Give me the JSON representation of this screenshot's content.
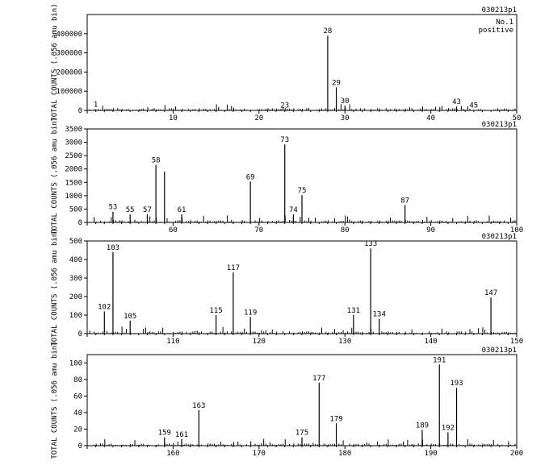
{
  "chart_data": [
    {
      "type": "bar",
      "sample_id": "030213p1",
      "notes": [
        "No.1",
        "positive"
      ],
      "ylabel": "TOTAL COUNTS (.056 amu bin)",
      "xlim": [
        0,
        50
      ],
      "ylim": [
        0,
        500000
      ],
      "xticks": [
        10,
        20,
        30,
        40,
        50
      ],
      "yticks": [
        0,
        100000,
        200000,
        300000,
        400000
      ],
      "peaks": [
        {
          "x": 1,
          "y": 6000,
          "label": "1"
        },
        {
          "x": 23,
          "y": 1500,
          "label": "23"
        },
        {
          "x": 28,
          "y": 390000,
          "label": "28"
        },
        {
          "x": 29,
          "y": 120000,
          "label": "29"
        },
        {
          "x": 30,
          "y": 25000,
          "label": "30"
        },
        {
          "x": 43,
          "y": 20000,
          "label": "43"
        },
        {
          "x": 45,
          "y": 3000,
          "label": "45"
        }
      ]
    },
    {
      "type": "bar",
      "sample_id": "030213p1",
      "ylabel": "TOTAL COUNTS (.056 amu bin)",
      "xlim": [
        50,
        100
      ],
      "ylim": [
        0,
        3500
      ],
      "xticks": [
        60,
        70,
        80,
        90,
        100
      ],
      "yticks": [
        0,
        500,
        1000,
        1500,
        2000,
        2500,
        3000,
        3500
      ],
      "peaks": [
        {
          "x": 53,
          "y": 400,
          "label": "53"
        },
        {
          "x": 55,
          "y": 300,
          "label": "55"
        },
        {
          "x": 57,
          "y": 300,
          "label": "57"
        },
        {
          "x": 58,
          "y": 2150,
          "label": "58"
        },
        {
          "x": 59,
          "y": 1900,
          "label": ""
        },
        {
          "x": 61,
          "y": 300,
          "label": "61"
        },
        {
          "x": 69,
          "y": 1530,
          "label": "69"
        },
        {
          "x": 73,
          "y": 2920,
          "label": "73"
        },
        {
          "x": 74,
          "y": 300,
          "label": "74"
        },
        {
          "x": 75,
          "y": 1020,
          "label": "75"
        },
        {
          "x": 87,
          "y": 650,
          "label": "87"
        }
      ]
    },
    {
      "type": "bar",
      "sample_id": "030213p1",
      "ylabel": "TOTAL COUNTS (.056 amu bin)",
      "xlim": [
        100,
        150
      ],
      "ylim": [
        0,
        500
      ],
      "xticks": [
        110,
        120,
        130,
        140,
        150
      ],
      "yticks": [
        0,
        100,
        200,
        300,
        400,
        500
      ],
      "peaks": [
        {
          "x": 102,
          "y": 120,
          "label": "102"
        },
        {
          "x": 103,
          "y": 440,
          "label": "103"
        },
        {
          "x": 105,
          "y": 70,
          "label": "105"
        },
        {
          "x": 115,
          "y": 100,
          "label": "115"
        },
        {
          "x": 117,
          "y": 330,
          "label": "117"
        },
        {
          "x": 119,
          "y": 90,
          "label": "119"
        },
        {
          "x": 131,
          "y": 100,
          "label": "131"
        },
        {
          "x": 133,
          "y": 460,
          "label": "133"
        },
        {
          "x": 134,
          "y": 80,
          "label": "134"
        },
        {
          "x": 147,
          "y": 195,
          "label": "147"
        }
      ]
    },
    {
      "type": "bar",
      "sample_id": "030213p1",
      "ylabel": "TOTAL COUNTS (.056 amu bin)",
      "xlim": [
        150,
        200
      ],
      "ylim": [
        0,
        110
      ],
      "xticks": [
        160,
        170,
        180,
        190,
        200
      ],
      "yticks": [
        0,
        20,
        40,
        60,
        80,
        100
      ],
      "peaks": [
        {
          "x": 159,
          "y": 10,
          "label": "159"
        },
        {
          "x": 161,
          "y": 8,
          "label": "161"
        },
        {
          "x": 163,
          "y": 43,
          "label": "163"
        },
        {
          "x": 175,
          "y": 10,
          "label": "175"
        },
        {
          "x": 177,
          "y": 76,
          "label": "177"
        },
        {
          "x": 179,
          "y": 27,
          "label": "179"
        },
        {
          "x": 189,
          "y": 19,
          "label": "189"
        },
        {
          "x": 191,
          "y": 98,
          "label": "191"
        },
        {
          "x": 192,
          "y": 16,
          "label": "192"
        },
        {
          "x": 193,
          "y": 70,
          "label": "193"
        }
      ]
    }
  ]
}
